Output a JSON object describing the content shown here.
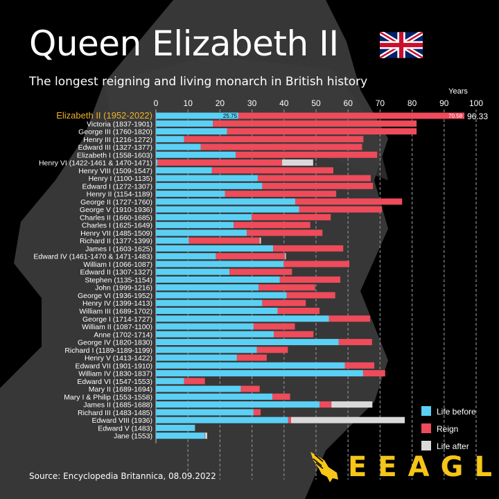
{
  "title": "Queen Elizabeth II",
  "subtitle": "The longest reigning and living monarch in British history",
  "source": "Source: Encyclopedia Britannica, 08.09.2022",
  "logo_text": "EEAGLI",
  "colors": {
    "life_before": "#5bd0f5",
    "reign": "#ee4b5b",
    "life_after": "#d9d9d9",
    "highlight_label": "#f0b429",
    "background": "#000000",
    "logo": "#f5c518"
  },
  "chart_data": {
    "type": "bar",
    "stacked": true,
    "orientation": "horizontal",
    "xlabel": "Years",
    "xlim": [
      0,
      100
    ],
    "xticks": [
      0,
      10,
      20,
      30,
      40,
      50,
      60,
      70,
      80,
      90,
      100
    ],
    "grid": true,
    "legend_position": "bottom-right",
    "legend": [
      "Life before",
      "Reign",
      "Life after"
    ],
    "highlight": {
      "label": "Elizabeth II (1952-2022)",
      "life_before_label": "25.75",
      "reign_label": "70.58",
      "total_label": "96.33"
    },
    "categories": [
      "Elizabeth II (1952-2022)",
      "Victoria (1837-1901)",
      "George III (1760-1820)",
      "Henry III (1216-1272)",
      "Edward III (1327-1377)",
      "Elizabeth I (1558-1603)",
      "Henry VI (1422-1461 & 1470-1471)",
      "Henry VIII (1509-1547)",
      "Henry I (1100-1135)",
      "Edward I (1272-1307)",
      "Henry II (1154-1189)",
      "George II (1727-1760)",
      "George V (1910-1936)",
      "Charles II (1660-1685)",
      "Charles I (1625-1649)",
      "Henry VII (1485-1509)",
      "Richard II (1377-1399)",
      "James I (1603-1625)",
      "Edward IV (1461-1470 & 1471-1483)",
      "William I (1066-1087)",
      "Edward II (1307-1327)",
      "Stephen (1135-1154)",
      "John (1999-1216)",
      "George VI (1936-1952)",
      "Henry IV (1399-1413)",
      "William III (1689-1702)",
      "George I (1714-1727)",
      "William II (1087-1100)",
      "Anne (1702-1714)",
      "George IV (1820-1830)",
      "Richard I (1189-1189-1199)",
      "Henry V (1413-1422)",
      "Edward VII (1901-1910)",
      "William IV (1830-1837)",
      "Edward VI (1547-1553)",
      "Mary II (1689-1694)",
      "Mary I & Philip (1553-1558)",
      "James II (1685-1688)",
      "Richard III (1483-1485)",
      "Edward VIII (1936)",
      "Edward V (1483)",
      "Jane (1553)"
    ],
    "series": [
      {
        "name": "Life before",
        "values": [
          25.75,
          17.8,
          22.2,
          8.8,
          14.0,
          24.9,
          0.5,
          17.5,
          31.8,
          33.2,
          21.6,
          43.5,
          44.7,
          29.9,
          24.3,
          28.4,
          10.3,
          36.6,
          18.7,
          39.9,
          23.0,
          38.7,
          32.1,
          40.8,
          33.2,
          38.0,
          54.0,
          30.5,
          36.8,
          57.1,
          31.5,
          25.3,
          59.0,
          64.7,
          8.8,
          26.5,
          36.4,
          51.1,
          30.5,
          41.3,
          12.2,
          15.3
        ]
      },
      {
        "name": "Reign",
        "values": [
          70.58,
          63.6,
          59.2,
          56.0,
          50.4,
          44.2,
          38.9,
          37.9,
          35.3,
          34.6,
          34.7,
          33.4,
          25.9,
          24.7,
          23.9,
          23.6,
          22.1,
          21.9,
          21.6,
          20.5,
          19.5,
          18.9,
          17.6,
          15.2,
          13.6,
          13.1,
          12.9,
          12.9,
          12.4,
          10.4,
          9.7,
          9.3,
          9.2,
          6.9,
          6.5,
          5.9,
          5.5,
          3.7,
          2.2,
          0.9,
          0,
          0.1
        ]
      },
      {
        "name": "Life after",
        "values": [
          0,
          0,
          0,
          0,
          0,
          0,
          9.7,
          0,
          0,
          0,
          0,
          0,
          0,
          0,
          0,
          0,
          0.4,
          0,
          0.3,
          0,
          0,
          0,
          0,
          0,
          0,
          0,
          0,
          0,
          0,
          0,
          0,
          0,
          0,
          0,
          0,
          0,
          0,
          12.8,
          0,
          35.5,
          0,
          0.6
        ]
      }
    ]
  }
}
